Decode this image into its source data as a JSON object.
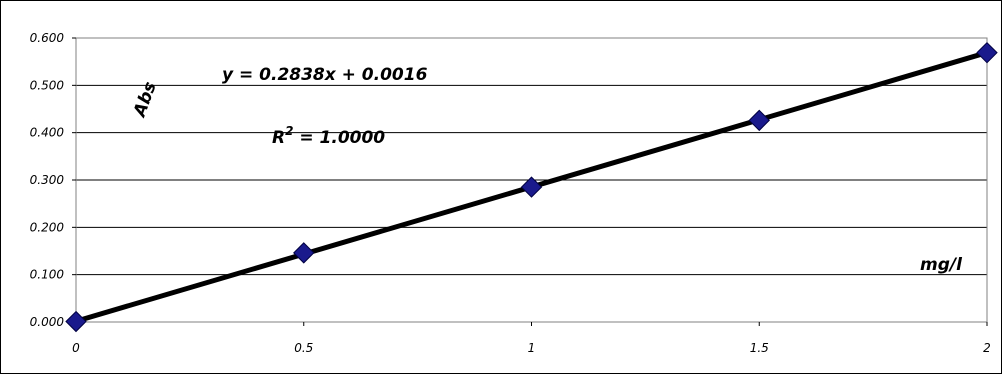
{
  "chart_data": {
    "type": "scatter",
    "ylabel": "Abs",
    "xlabel": "mg/l",
    "x": [
      0,
      0.5,
      1,
      1.5,
      2
    ],
    "series": [
      {
        "values": [
          0.001,
          0.146,
          0.285,
          0.426,
          0.569
        ],
        "color": "#1a1a8c"
      }
    ],
    "trendline": {
      "equation": "y = 0.2838x + 0.0016",
      "r2_label": "R",
      "r2_sup": "2",
      "r2_value": " = 1.0000",
      "slope": 0.2838,
      "intercept": 0.0016,
      "color": "#000000"
    },
    "xlim": [
      0,
      2
    ],
    "ylim": [
      0,
      0.6
    ],
    "x_ticks": [
      "0",
      "0.5",
      "1",
      "1.5",
      "2"
    ],
    "y_ticks": [
      "0.000",
      "0.100",
      "0.200",
      "0.300",
      "0.400",
      "0.500",
      "0.600"
    ],
    "y_tick_values": [
      0,
      0.1,
      0.2,
      0.3,
      0.4,
      0.5,
      0.6
    ],
    "x_tick_values": [
      0,
      0.5,
      1,
      1.5,
      2
    ],
    "grid": "horizontal"
  }
}
